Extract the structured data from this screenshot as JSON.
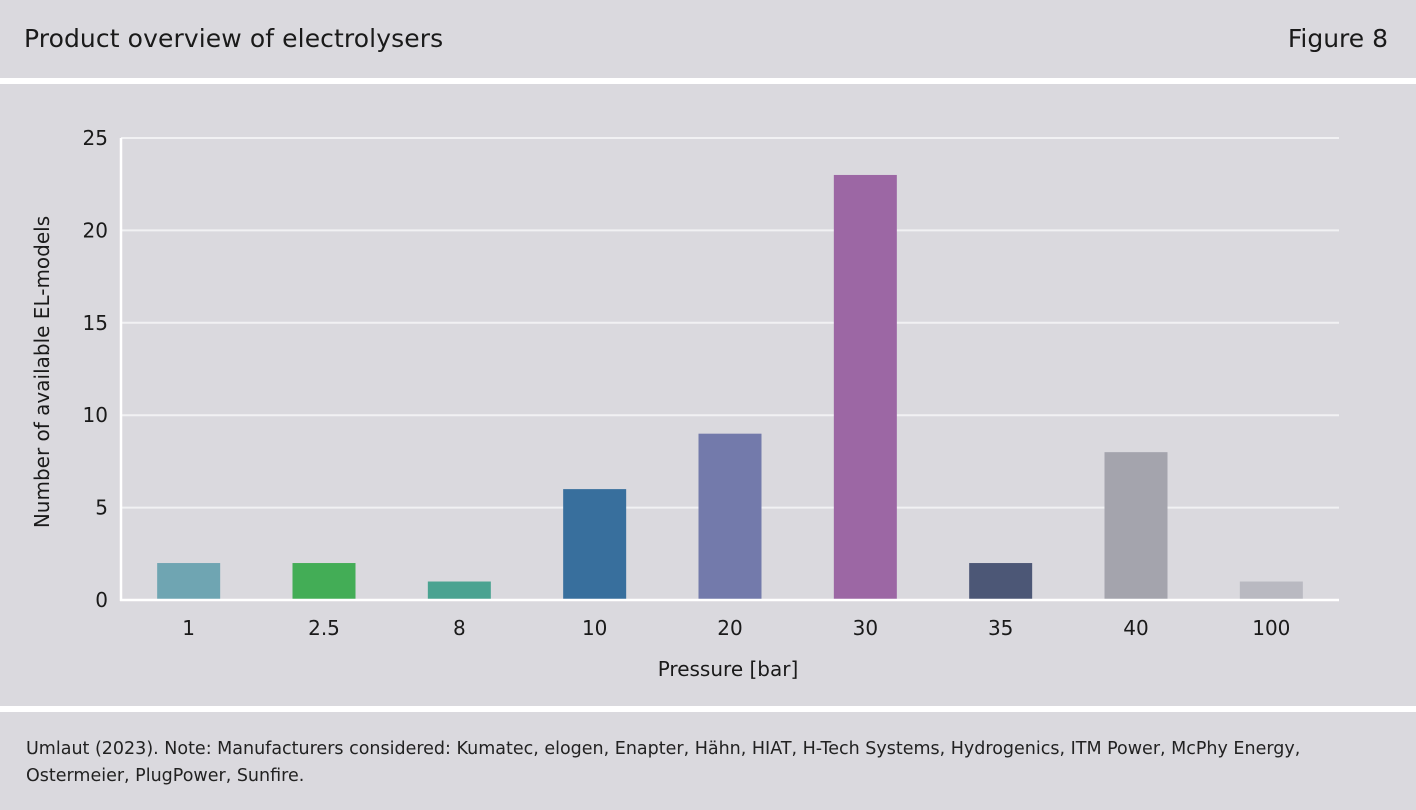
{
  "header": {
    "title": "Product overview of electrolysers",
    "figure_label": "Figure 8"
  },
  "footer": {
    "source": "Umlaut (2023). Note: Manufacturers considered: Kumatec, elogen, Enapter, Hähn, HIAT, H-Tech Systems, Hydrogenics, ITM Power, McPhy Energy, Ostermeier, PlugPower, Sunfire."
  },
  "chart_data": {
    "type": "bar",
    "categories": [
      "1",
      "2.5",
      "8",
      "10",
      "20",
      "30",
      "35",
      "40",
      "100"
    ],
    "values": [
      2,
      2,
      1,
      6,
      9,
      23,
      2,
      8,
      1
    ],
    "colors": [
      "#6fa5b2",
      "#43ad56",
      "#4aa391",
      "#386f9d",
      "#737aab",
      "#9c67a4",
      "#4c5776",
      "#a4a4ad",
      "#b9b9c1"
    ],
    "xlabel": "Pressure [bar]",
    "ylabel": "Number of available EL-models",
    "ylim": [
      0,
      25
    ],
    "yticks": [
      0,
      5,
      10,
      15,
      20,
      25
    ],
    "grid": true,
    "gridline_color": "#f1f1f3"
  }
}
